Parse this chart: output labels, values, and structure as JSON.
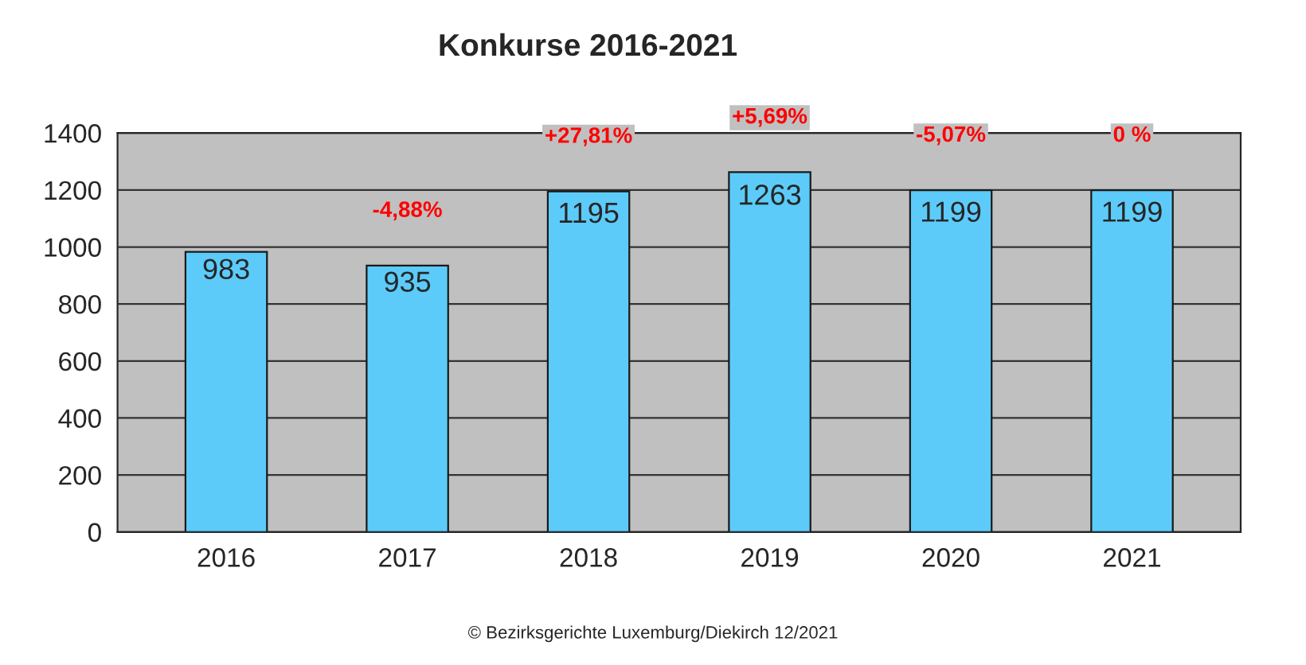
{
  "chart_data": {
    "type": "bar",
    "title": "Konkurse 2016-2021",
    "categories": [
      "2016",
      "2017",
      "2018",
      "2019",
      "2020",
      "2021"
    ],
    "values": [
      983,
      935,
      1195,
      1263,
      1199,
      1199
    ],
    "color": "#5ccbfa",
    "ylim": [
      0,
      1400
    ],
    "yticks": [
      0,
      200,
      400,
      600,
      800,
      1000,
      1200,
      1400
    ],
    "grid": "y",
    "data_labels": true,
    "annotations": [
      {
        "text": "-4,88%",
        "x": "2017",
        "y": 935
      },
      {
        "text": "+27,81%",
        "x": "2018",
        "y": 1195
      },
      {
        "text": "+5,69%",
        "x": "2019",
        "y": 1263
      },
      {
        "text": "-5,07%",
        "x": "2020",
        "y": 1199
      },
      {
        "text": "0 %",
        "x": "2021",
        "y": 1199
      },
      "© Bezirksgerichte Luxemburg/Diekirch 12/2021"
    ]
  }
}
